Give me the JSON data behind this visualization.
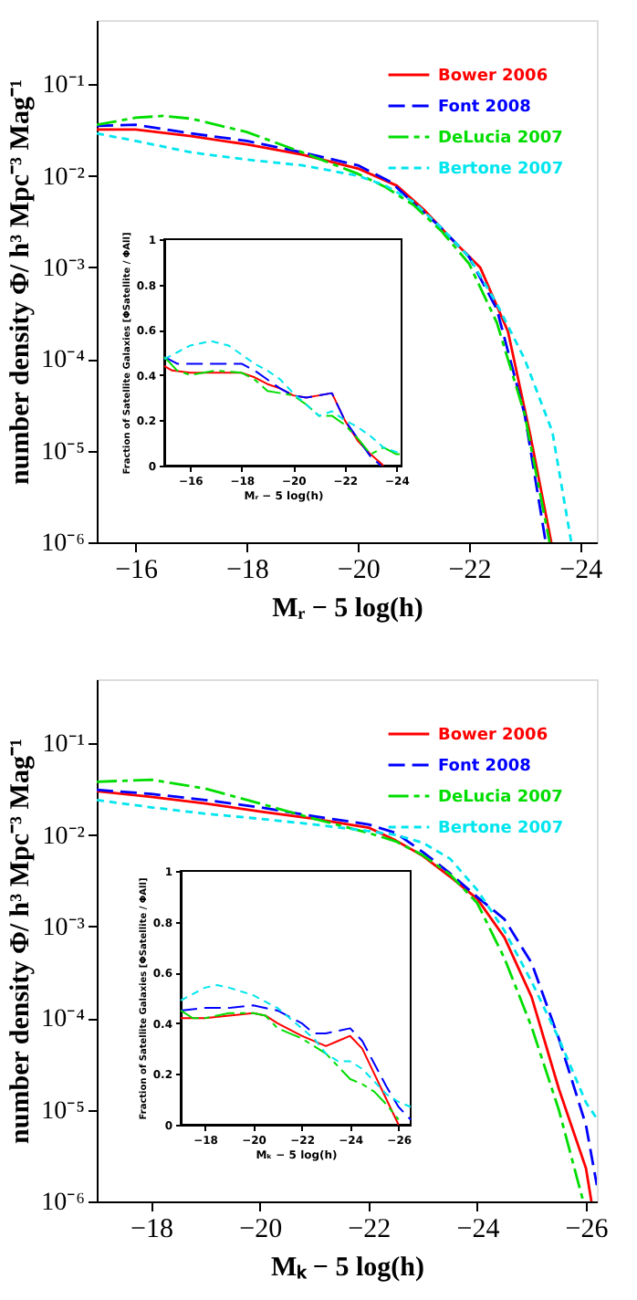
{
  "chart_data": [
    {
      "type": "line",
      "xlabel": "Mᵣ − 5 log(h)",
      "ylabel": "number density Φ/ h³ Mpc⁻³ Mag⁻¹",
      "log": "y",
      "legend": "top right",
      "xlim": [
        -15.3,
        -24.3
      ],
      "ylim": [
        1e-06,
        0.5
      ],
      "xticks": [
        -16,
        -18,
        -20,
        -22,
        -24
      ],
      "yticks": [
        {
          "value": 1e-06,
          "label": "10⁻⁶"
        },
        {
          "value": 1e-05,
          "label": "10⁻⁵"
        },
        {
          "value": 0.0001,
          "label": "10⁻⁴"
        },
        {
          "value": 0.001,
          "label": "10⁻³"
        },
        {
          "value": 0.01,
          "label": "10⁻²"
        },
        {
          "value": 0.1,
          "label": "10⁻¹"
        }
      ],
      "series": [
        {
          "name": "Bower 2006",
          "color": "#ff0000",
          "line_style": "solid",
          "x": [
            -15.3,
            -16,
            -17,
            -18,
            -19,
            -20,
            -20.7,
            -21.2,
            -21.7,
            -22.2,
            -22.7,
            -23.1,
            -23.48
          ],
          "values": [
            0.032,
            0.032,
            0.027,
            0.022,
            0.017,
            0.012,
            0.0078,
            0.0042,
            0.002,
            0.001,
            0.0002,
            1.5e-05,
            1e-06
          ]
        },
        {
          "name": "Font 2008",
          "color": "#0000ff",
          "line_style": "dashed",
          "x": [
            -15.3,
            -16,
            -17,
            -18,
            -19,
            -20,
            -20.6,
            -21,
            -21.5,
            -22,
            -22.5,
            -23,
            -23.38
          ],
          "values": [
            0.035,
            0.036,
            0.029,
            0.024,
            0.018,
            0.013,
            0.0085,
            0.005,
            0.0027,
            0.0013,
            0.00035,
            2.5e-05,
            1e-06
          ]
        },
        {
          "name": "DeLucia 2007",
          "color": "#00dd00",
          "line_style": "dashed",
          "x": [
            -15.3,
            -16,
            -16.5,
            -17,
            -18,
            -19,
            -20,
            -20.5,
            -21,
            -21.5,
            -22,
            -22.5,
            -23,
            -23.45
          ],
          "values": [
            0.036,
            0.043,
            0.045,
            0.042,
            0.03,
            0.018,
            0.0105,
            0.0075,
            0.0048,
            0.0025,
            0.0011,
            0.00025,
            2.5e-05,
            1e-06
          ]
        },
        {
          "name": "Bertone 2007",
          "color": "#00e5ee",
          "line_style": "dashed",
          "x": [
            -15.3,
            -16,
            -17,
            -18,
            -19,
            -20,
            -20.5,
            -21,
            -21.5,
            -22,
            -22.5,
            -23,
            -23.5,
            -23.84
          ],
          "values": [
            0.029,
            0.024,
            0.018,
            0.015,
            0.013,
            0.01,
            0.0078,
            0.0052,
            0.0027,
            0.0013,
            0.0004,
            0.0001,
            1.6e-05,
            1e-06
          ]
        }
      ]
    },
    {
      "type": "line",
      "xlabel": "Mᵣ − 5 log(h)",
      "ylabel": "Fraction of Satellite Galaxies [ΦSatellite / ΦAll]",
      "xlim": [
        -15,
        -24.2
      ],
      "ylim": [
        0,
        1
      ],
      "xticks": [
        -16,
        -18,
        -20,
        -22,
        -24
      ],
      "yticks": [
        0,
        0.2,
        0.4,
        0.6,
        0.8,
        1
      ],
      "series": [
        {
          "color": "#ff0000",
          "line_style": "solid",
          "x": [
            -15,
            -15.3,
            -16,
            -17,
            -18,
            -18.5,
            -19,
            -19.5,
            -20,
            -20.5,
            -21,
            -21.5,
            -22,
            -22.5,
            -23,
            -23.5
          ],
          "values": [
            0.44,
            0.42,
            0.41,
            0.41,
            0.41,
            0.39,
            0.36,
            0.34,
            0.31,
            0.3,
            0.31,
            0.32,
            0.2,
            0.11,
            0.05,
            0
          ]
        },
        {
          "color": "#0000ff",
          "line_style": "dashed",
          "x": [
            -15,
            -15.5,
            -16,
            -17,
            -18,
            -18.5,
            -19,
            -19.5,
            -20,
            -20.5,
            -21,
            -21.5,
            -22,
            -22.5,
            -23,
            -23.4
          ],
          "values": [
            0.48,
            0.45,
            0.45,
            0.45,
            0.45,
            0.42,
            0.38,
            0.34,
            0.31,
            0.3,
            0.31,
            0.32,
            0.2,
            0.12,
            0.04,
            0
          ]
        },
        {
          "color": "#00dd00",
          "line_style": "dashed",
          "x": [
            -15,
            -15.5,
            -16,
            -17,
            -18,
            -18.5,
            -19,
            -19.5,
            -20,
            -20.5,
            -21,
            -21.5,
            -22,
            -22.5,
            -23,
            -23.5,
            -24,
            -24.2
          ],
          "values": [
            0.48,
            0.42,
            0.4,
            0.42,
            0.41,
            0.38,
            0.33,
            0.32,
            0.31,
            0.27,
            0.22,
            0.22,
            0.18,
            0.12,
            0.05,
            0.08,
            0.05,
            0.05
          ]
        },
        {
          "color": "#00e5ee",
          "line_style": "dashed",
          "x": [
            -15,
            -15.5,
            -16,
            -16.8,
            -17.5,
            -18,
            -18.5,
            -19,
            -19.5,
            -20,
            -20.5,
            -21,
            -21.5,
            -22,
            -22.5,
            -23,
            -23.5,
            -24,
            -24.2
          ],
          "values": [
            0.47,
            0.5,
            0.53,
            0.55,
            0.53,
            0.49,
            0.45,
            0.42,
            0.38,
            0.32,
            0.27,
            0.22,
            0.24,
            0.2,
            0.17,
            0.13,
            0.08,
            0.06,
            0.05
          ]
        }
      ]
    },
    {
      "type": "line",
      "xlabel": "Mₖ − 5 log(h)",
      "ylabel": "number density Φ/ h³ Mpc⁻³ Mag⁻¹",
      "log": "y",
      "legend": "top right",
      "xlim": [
        -17,
        -26.2
      ],
      "ylim": [
        1e-06,
        0.5
      ],
      "xticks": [
        -18,
        -20,
        -22,
        -24,
        -26
      ],
      "yticks": [
        {
          "value": 1e-06,
          "label": "10⁻⁶"
        },
        {
          "value": 1e-05,
          "label": "10⁻⁵"
        },
        {
          "value": 0.0001,
          "label": "10⁻⁴"
        },
        {
          "value": 0.001,
          "label": "10⁻³"
        },
        {
          "value": 0.01,
          "label": "10⁻²"
        },
        {
          "value": 0.1,
          "label": "10⁻¹"
        }
      ],
      "series": [
        {
          "name": "Bower 2006",
          "color": "#ff0000",
          "line_style": "solid",
          "x": [
            -17,
            -18,
            -19,
            -20,
            -21,
            -22,
            -22.5,
            -23,
            -23.5,
            -24,
            -24.5,
            -25,
            -25.5,
            -26,
            -26.1
          ],
          "values": [
            0.03,
            0.026,
            0.022,
            0.018,
            0.015,
            0.012,
            0.0087,
            0.0059,
            0.0035,
            0.002,
            0.00076,
            0.00017,
            1.7e-05,
            2.3e-06,
            1e-06
          ]
        },
        {
          "name": "Font 2008",
          "color": "#0000ff",
          "line_style": "dashed",
          "x": [
            -17,
            -18,
            -19,
            -20,
            -21,
            -22,
            -22.5,
            -23,
            -23.5,
            -24,
            -24.5,
            -25,
            -25.5,
            -26,
            -26.2
          ],
          "values": [
            0.031,
            0.028,
            0.024,
            0.02,
            0.016,
            0.013,
            0.0105,
            0.0065,
            0.0038,
            0.0021,
            0.0012,
            0.0004,
            6e-05,
            6.8e-06,
            1.5e-06
          ]
        },
        {
          "name": "DeLucia 2007",
          "color": "#00dd00",
          "line_style": "dashed",
          "x": [
            -17,
            -18,
            -19,
            -20,
            -21,
            -22,
            -22.5,
            -23,
            -23.5,
            -24,
            -24.5,
            -25,
            -25.5,
            -25.95
          ],
          "values": [
            0.038,
            0.04,
            0.032,
            0.022,
            0.015,
            0.0105,
            0.0085,
            0.006,
            0.0037,
            0.0018,
            0.00045,
            8e-05,
            1e-05,
            1e-06
          ]
        },
        {
          "name": "Bertone 2007",
          "color": "#00e5ee",
          "line_style": "dashed",
          "x": [
            -17,
            -18,
            -19,
            -20,
            -21,
            -22,
            -22.5,
            -23,
            -23.5,
            -24,
            -24.5,
            -25,
            -25.5,
            -26,
            -26.2
          ],
          "values": [
            0.024,
            0.02,
            0.017,
            0.015,
            0.013,
            0.011,
            0.01,
            0.0082,
            0.0055,
            0.0025,
            0.0009,
            0.00025,
            6e-05,
            1.2e-05,
            8e-06
          ]
        }
      ]
    },
    {
      "type": "line",
      "xlabel": "Mₖ − 5 log(h)",
      "ylabel": "Fraction of Satellite Galaxies [ΦSatellite / ΦAll]",
      "xlim": [
        -17,
        -26.5
      ],
      "ylim": [
        0,
        1
      ],
      "xticks": [
        -18,
        -20,
        -22,
        -24,
        -26
      ],
      "yticks": [
        0,
        0.2,
        0.4,
        0.6,
        0.8,
        1
      ],
      "series": [
        {
          "color": "#ff0000",
          "line_style": "solid",
          "x": [
            -17,
            -18,
            -19,
            -20,
            -20.5,
            -21,
            -22,
            -23,
            -23.5,
            -24,
            -24.5,
            -25,
            -25.5,
            -26
          ],
          "values": [
            0.42,
            0.42,
            0.43,
            0.44,
            0.43,
            0.4,
            0.35,
            0.31,
            0.33,
            0.35,
            0.3,
            0.2,
            0.1,
            0
          ]
        },
        {
          "color": "#0000ff",
          "line_style": "dashed",
          "x": [
            -17,
            -18,
            -19,
            -20,
            -21,
            -22,
            -22.5,
            -23,
            -24,
            -24.5,
            -25,
            -25.5,
            -26,
            -26.5
          ],
          "values": [
            0.45,
            0.46,
            0.46,
            0.47,
            0.45,
            0.4,
            0.36,
            0.36,
            0.38,
            0.33,
            0.24,
            0.15,
            0.07,
            0.02
          ]
        },
        {
          "color": "#00dd00",
          "line_style": "dashed",
          "x": [
            -17,
            -17.5,
            -18,
            -19,
            -20,
            -20.5,
            -21,
            -21.5,
            -22,
            -23,
            -23.5,
            -24,
            -24.5,
            -25,
            -25.5,
            -26
          ],
          "values": [
            0.45,
            0.42,
            0.42,
            0.44,
            0.44,
            0.43,
            0.38,
            0.36,
            0.34,
            0.28,
            0.23,
            0.18,
            0.16,
            0.13,
            0.08,
            0.02
          ]
        },
        {
          "color": "#00e5ee",
          "line_style": "dashed",
          "x": [
            -17,
            -18,
            -18.5,
            -19,
            -20,
            -21,
            -22,
            -22.5,
            -23,
            -23.5,
            -24,
            -24.5,
            -25,
            -25.5,
            -26,
            -26.5
          ],
          "values": [
            0.49,
            0.54,
            0.55,
            0.54,
            0.51,
            0.46,
            0.38,
            0.34,
            0.28,
            0.25,
            0.25,
            0.22,
            0.17,
            0.12,
            0.09,
            0.07
          ]
        }
      ]
    }
  ]
}
